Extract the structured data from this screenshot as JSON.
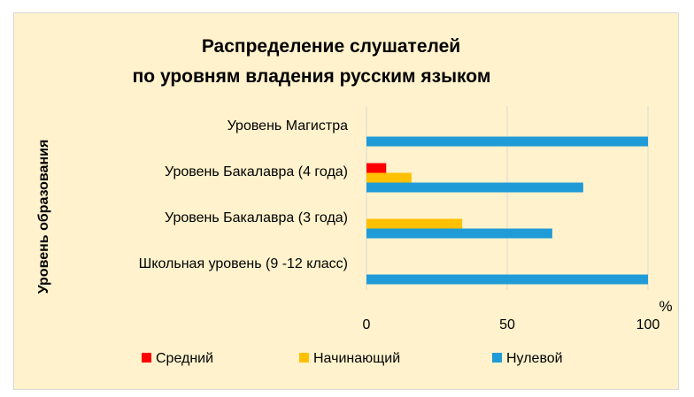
{
  "chart_data": {
    "type": "bar",
    "orientation": "horizontal",
    "title": [
      "Распределение слушателей",
      "по уровням владения русским языком"
    ],
    "ylabel": "Уровень образования",
    "xlabel": "%",
    "categories": [
      "Уровень Магистра",
      "Уровень Бакалавра (4 года)",
      "Уровень Бакалавра (3 года)",
      "Школьная уровень (9 -12 класс)"
    ],
    "series": [
      {
        "name": "Средний",
        "color": "#FF0000",
        "values": [
          0,
          7,
          0,
          0
        ]
      },
      {
        "name": "Начинающий",
        "color": "#FFC000",
        "values": [
          0,
          16,
          34,
          0
        ]
      },
      {
        "name": "Нулевой",
        "color": "#1F9BD7",
        "values": [
          100,
          77,
          66,
          100
        ]
      }
    ],
    "xlim": [
      0,
      100
    ],
    "xticks": [
      "0",
      "50",
      "100"
    ],
    "grid": true,
    "legend": "bottom"
  }
}
